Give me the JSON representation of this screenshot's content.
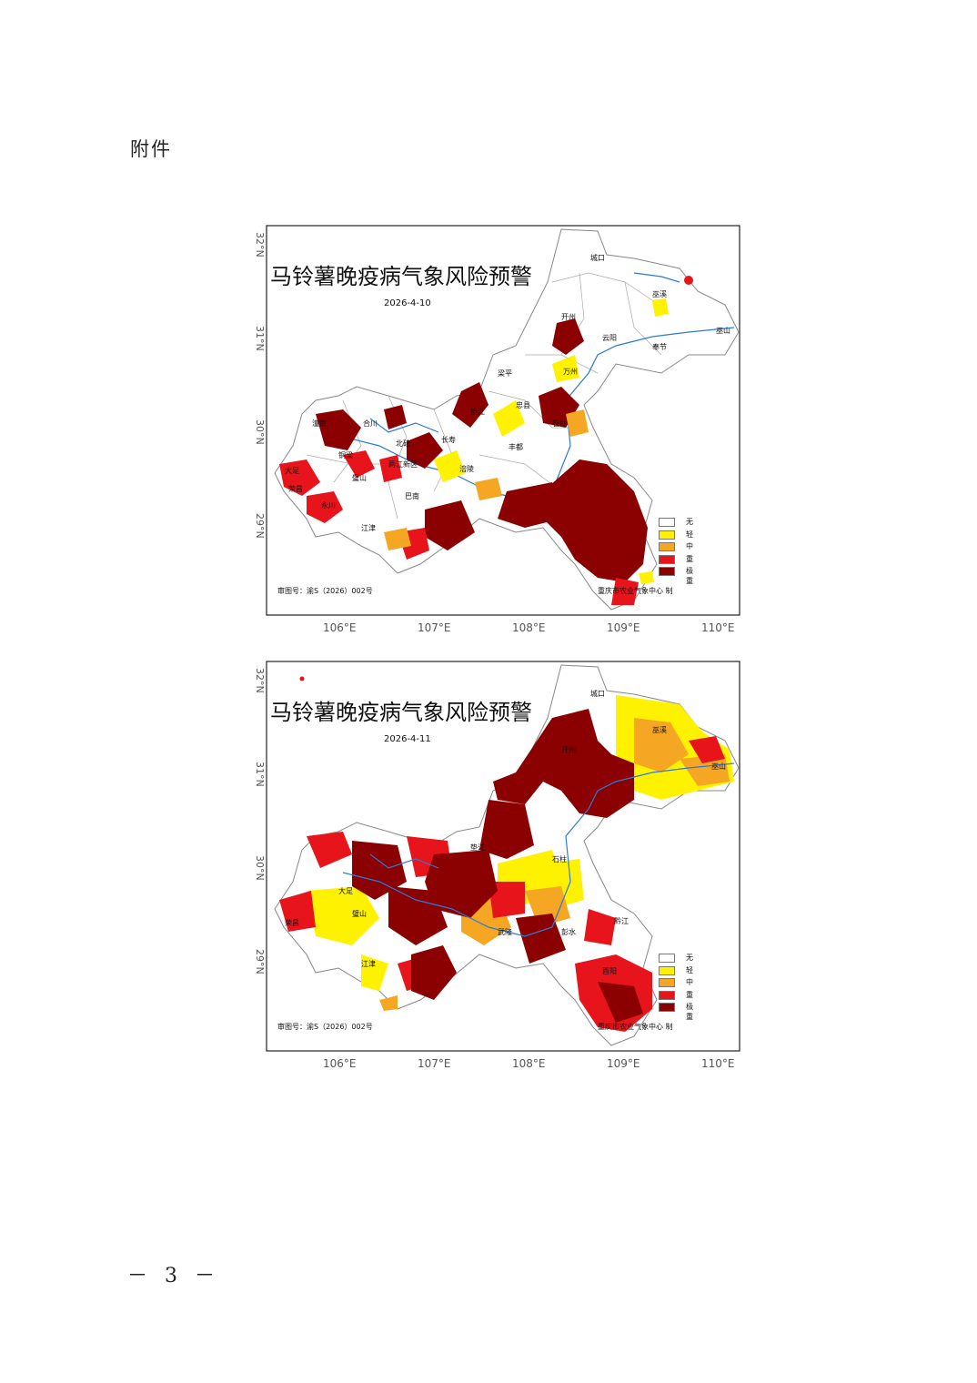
{
  "page": {
    "attachment_label": "附件",
    "page_number": "－ 3 －"
  },
  "legend": [
    {
      "label": "无",
      "color": "#ffffff"
    },
    {
      "label": "轻",
      "color": "#fff200"
    },
    {
      "label": "中",
      "color": "#f5a623"
    },
    {
      "label": "重",
      "color": "#e8141b"
    },
    {
      "label": "极重",
      "color": "#8b0000"
    }
  ],
  "latitude_labels": [
    "32°N",
    "31°N",
    "30°N",
    "29°N"
  ],
  "longitude_labels": [
    "106°E",
    "107°E",
    "108°E",
    "109°E",
    "110°E"
  ],
  "maps": [
    {
      "title": "马铃薯晚疫病气象风险预警",
      "date": "2026-4-10",
      "credit_left": "审图号：渝S（2026）002号",
      "credit_right": "重庆市农业气象中心 制",
      "places": [
        "城口",
        "巫溪",
        "开州",
        "云阳",
        "奉节",
        "巫山",
        "万州",
        "梁平",
        "忠县",
        "垫江",
        "长寿",
        "丰都",
        "石柱",
        "合川",
        "潼南",
        "铜梁",
        "北碚",
        "璧山",
        "两江新区",
        "大足",
        "荣昌",
        "永川",
        "江津",
        "涪陵",
        "巴南"
      ]
    },
    {
      "title": "马铃薯晚疫病气象风险预警",
      "date": "2026-4-11",
      "credit_left": "审图号：渝S（2026）002号",
      "credit_right": "重庆市农业气象中心 制",
      "places": [
        "城口",
        "巫溪",
        "开州",
        "巫山",
        "垫江",
        "石柱",
        "璧山",
        "荣昌",
        "大足",
        "江津",
        "武隆",
        "彭水",
        "黔江",
        "酉阳"
      ]
    }
  ]
}
